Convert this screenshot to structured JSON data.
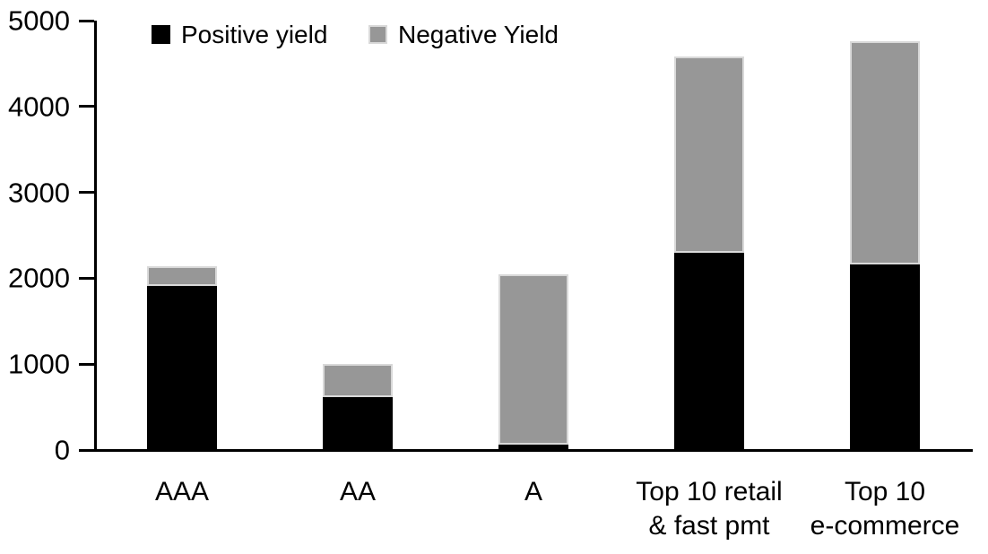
{
  "chart_data": {
    "type": "bar",
    "stacked": true,
    "title": "",
    "xlabel": "",
    "ylabel": "",
    "categories": [
      "AAA",
      "AA",
      "A",
      "Top 10 retail\n& fast pmt",
      "Top 10\ne-commerce"
    ],
    "series": [
      {
        "name": "Positive yield",
        "color": "#000000",
        "values": [
          1900,
          610,
          50,
          2290,
          2150
        ]
      },
      {
        "name": "Negative Yield",
        "color": "#979797",
        "values": [
          230,
          390,
          1980,
          2290,
          2600
        ]
      }
    ],
    "totals": [
      2130,
      1000,
      2030,
      4580,
      4750
    ],
    "ylim": [
      0,
      5000
    ],
    "yticks": [
      "0",
      "1000",
      "2000",
      "3000",
      "4000",
      "5000"
    ],
    "grid": false,
    "legend_position": "top"
  },
  "colors": {
    "background": "#ffffff",
    "axis": "#000000",
    "positive_yield": "#000000",
    "negative_yield": "#979797",
    "bar_border": "#d9d9d9"
  }
}
